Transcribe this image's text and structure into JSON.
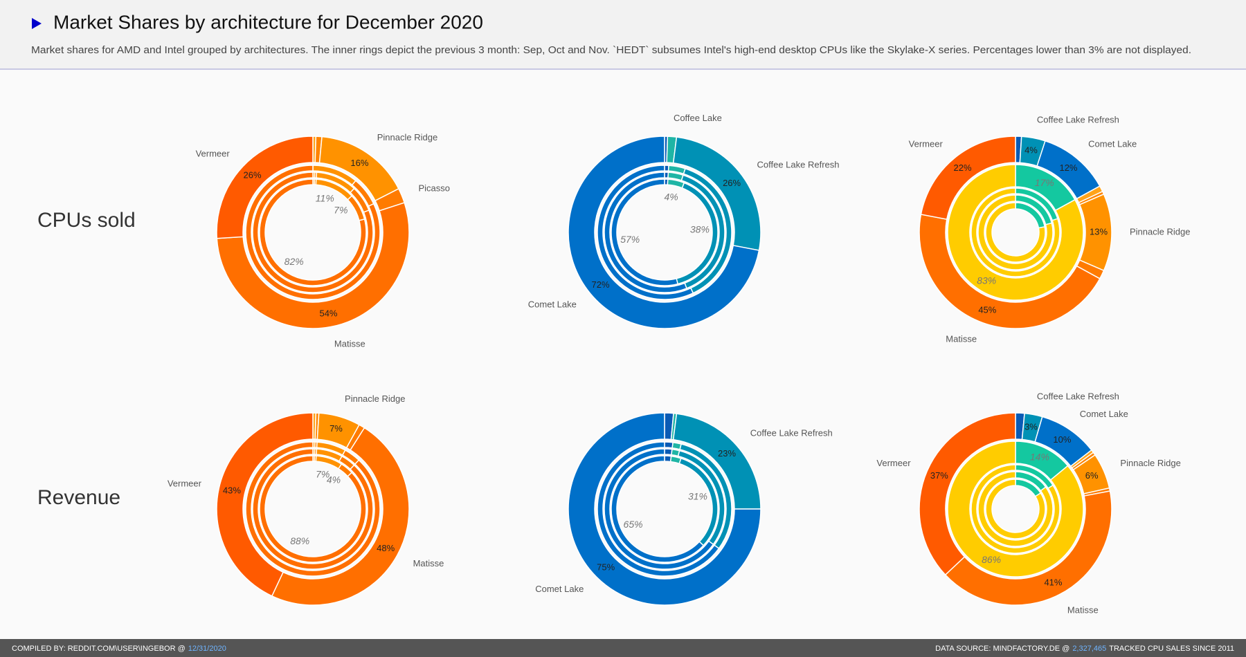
{
  "header": {
    "title": "Market Shares by architecture for December 2020",
    "subtitle": "Market shares for AMD and Intel grouped by architectures. The inner rings depict the previous 3 month: Sep, Oct and Nov. `HEDT` subsumes Intel's high-end desktop CPUs like the Skylake-X series. Percentages lower than 3% are not displayed."
  },
  "rows": [
    "CPUs sold",
    "Revenue"
  ],
  "footer": {
    "left": "COMPILED BY: REDDIT.COM\\USER\\INGEBOR @",
    "date": "12/31/2020",
    "right_prefix": "DATA SOURCE: MINDFACTORY.DE @",
    "count": "2,327,465",
    "right_suffix": "TRACKED CPU SALES SINCE 2011"
  },
  "chart_data": [
    {
      "type": "pie",
      "categories": [
        null,
        null,
        "Pinnacle Ridge",
        "Picasso",
        "Matisse",
        "Vermeer"
      ],
      "rings": [
        {
          "colors": [
            "#ffa31a",
            "#ff8400",
            "#ff9200",
            "#ff7b00",
            "#ff6f00",
            "#ff5a00"
          ],
          "values": [
            0.5,
            0.5,
            12,
            8,
            79,
            0
          ]
        },
        {
          "colors": [
            "#ffa31a",
            "#ff8400",
            "#ff9200",
            "#ff7b00",
            "#ff6f00",
            "#ff5a00"
          ],
          "values": [
            0.5,
            0.5,
            11,
            7,
            81,
            0
          ]
        },
        {
          "colors": [
            "#ffa31a",
            "#ff8400",
            "#ff9200",
            "#ff7b00",
            "#ff6f00",
            "#ff5a00"
          ],
          "values": [
            0,
            0,
            11,
            7,
            82,
            0
          ],
          "value_labels": [
            null,
            null,
            "11%",
            "7%",
            "82%",
            null
          ]
        },
        {
          "colors": [
            "#ffa31a",
            "#ff8400",
            "#ff9200",
            "#ff7b00",
            "#ff6f00",
            "#ff5a00"
          ],
          "values": [
            0.5,
            1,
            16,
            2.5,
            54,
            26
          ],
          "value_labels": [
            null,
            null,
            "16%",
            null,
            "54%",
            "26%"
          ]
        }
      ]
    },
    {
      "type": "pie",
      "categories": [
        null,
        "Coffee Lake",
        "Coffee Lake Refresh",
        "Comet Lake"
      ],
      "rings": [
        {
          "colors": [
            "#0a5bb5",
            "#1fb5a5",
            "#0091b5",
            "#0070c9"
          ],
          "values": [
            1,
            5,
            40,
            54
          ]
        },
        {
          "colors": [
            "#0a5bb5",
            "#1fb5a5",
            "#0091b5",
            "#0070c9"
          ],
          "values": [
            1,
            4,
            39,
            56
          ]
        },
        {
          "colors": [
            "#0a5bb5",
            "#1fb5a5",
            "#0091b5",
            "#0070c9"
          ],
          "values": [
            1,
            4,
            38,
            57
          ],
          "value_labels": [
            null,
            "4%",
            "38%",
            "57%"
          ]
        },
        {
          "colors": [
            "#0a5bb5",
            "#1fb5a5",
            "#0091b5",
            "#0070c9"
          ],
          "values": [
            0.5,
            1.5,
            26,
            72
          ],
          "value_labels": [
            null,
            null,
            "26%",
            "72%"
          ]
        }
      ]
    },
    {
      "type": "pie",
      "categories": [
        null,
        "Coffee Lake Refresh",
        "Comet Lake",
        null,
        null,
        "Pinnacle Ridge",
        null,
        "Matisse",
        "Vermeer"
      ],
      "rings": [
        {
          "colors": [
            "#14c8a0",
            "#ffcc00"
          ],
          "values": [
            22,
            78
          ]
        },
        {
          "colors": [
            "#14c8a0",
            "#ffcc00"
          ],
          "values": [
            21,
            79
          ]
        },
        {
          "colors": [
            "#14c8a0",
            "#ffcc00"
          ],
          "values": [
            20,
            80
          ]
        },
        {
          "colors": [
            "#14c8a0",
            "#ffcc00"
          ],
          "values": [
            17,
            83
          ],
          "value_labels": [
            "17%",
            "83%"
          ]
        },
        {
          "colors": [
            "#0a5bb5",
            "#0091b5",
            "#0070c9",
            "#ffa31a",
            "#ff8400",
            "#ff9200",
            "#ff7b00",
            "#ff6f00",
            "#ff5a00"
          ],
          "values": [
            1,
            4,
            12,
            1,
            0.5,
            13,
            1.5,
            45,
            22
          ],
          "value_labels": [
            null,
            "4%",
            "12%",
            null,
            null,
            "13%",
            null,
            "45%",
            "22%"
          ]
        }
      ]
    },
    {
      "type": "pie",
      "categories": [
        null,
        null,
        "Pinnacle Ridge",
        null,
        "Matisse",
        "Vermeer"
      ],
      "rings": [
        {
          "colors": [
            "#ffa31a",
            "#ff8400",
            "#ff9200",
            "#ff7b00",
            "#ff6f00",
            "#ff5a00"
          ],
          "values": [
            0.5,
            0.5,
            8,
            4,
            87,
            0
          ]
        },
        {
          "colors": [
            "#ffa31a",
            "#ff8400",
            "#ff9200",
            "#ff7b00",
            "#ff6f00",
            "#ff5a00"
          ],
          "values": [
            0.5,
            0.5,
            7,
            4,
            88,
            0
          ]
        },
        {
          "colors": [
            "#ffa31a",
            "#ff8400",
            "#ff9200",
            "#ff7b00",
            "#ff6f00",
            "#ff5a00"
          ],
          "values": [
            0.5,
            0.5,
            7,
            4,
            88,
            0
          ],
          "value_labels": [
            null,
            null,
            "7%",
            "4%",
            "88%",
            null
          ]
        },
        {
          "colors": [
            "#ffa31a",
            "#ff8400",
            "#ff9200",
            "#ff7b00",
            "#ff6f00",
            "#ff5a00"
          ],
          "values": [
            0.5,
            0.5,
            7,
            1,
            48,
            43
          ],
          "value_labels": [
            null,
            null,
            "7%",
            null,
            "48%",
            "43%"
          ]
        }
      ]
    },
    {
      "type": "pie",
      "categories": [
        null,
        null,
        "Coffee Lake Refresh",
        "Comet Lake"
      ],
      "rings": [
        {
          "colors": [
            "#0a5bb5",
            "#1fb5a5",
            "#0091b5",
            "#0070c9"
          ],
          "values": [
            2,
            3,
            32,
            63
          ]
        },
        {
          "colors": [
            "#0a5bb5",
            "#1fb5a5",
            "#0091b5",
            "#0070c9"
          ],
          "values": [
            2,
            2,
            31,
            65
          ]
        },
        {
          "colors": [
            "#0a5bb5",
            "#1fb5a5",
            "#0091b5",
            "#0070c9"
          ],
          "values": [
            2,
            2,
            31,
            65
          ],
          "value_labels": [
            null,
            null,
            "31%",
            "65%"
          ]
        },
        {
          "colors": [
            "#0a5bb5",
            "#1fb5a5",
            "#0091b5",
            "#0070c9"
          ],
          "values": [
            1.5,
            0.5,
            23,
            75
          ],
          "value_labels": [
            null,
            null,
            "23%",
            "75%"
          ]
        }
      ]
    },
    {
      "type": "pie",
      "categories": [
        null,
        "Coffee Lake Refresh",
        "Comet Lake",
        null,
        null,
        "Pinnacle Ridge",
        null,
        "Matisse",
        "Vermeer"
      ],
      "rings": [
        {
          "colors": [
            "#14c8a0",
            "#ffcc00"
          ],
          "values": [
            16,
            84
          ]
        },
        {
          "colors": [
            "#14c8a0",
            "#ffcc00"
          ],
          "values": [
            15,
            85
          ]
        },
        {
          "colors": [
            "#14c8a0",
            "#ffcc00"
          ],
          "values": [
            16,
            84
          ]
        },
        {
          "colors": [
            "#14c8a0",
            "#ffcc00"
          ],
          "values": [
            14,
            86
          ],
          "value_labels": [
            "14%",
            "86%"
          ]
        },
        {
          "colors": [
            "#0a5bb5",
            "#0091b5",
            "#0070c9",
            "#ffa31a",
            "#ff8400",
            "#ff9200",
            "#ff7b00",
            "#ff6f00",
            "#ff5a00"
          ],
          "values": [
            1.5,
            3,
            10,
            0.5,
            0.5,
            6,
            0.5,
            41,
            37
          ],
          "value_labels": [
            null,
            "3%",
            "10%",
            null,
            null,
            "6%",
            null,
            "41%",
            "37%"
          ]
        }
      ]
    }
  ]
}
